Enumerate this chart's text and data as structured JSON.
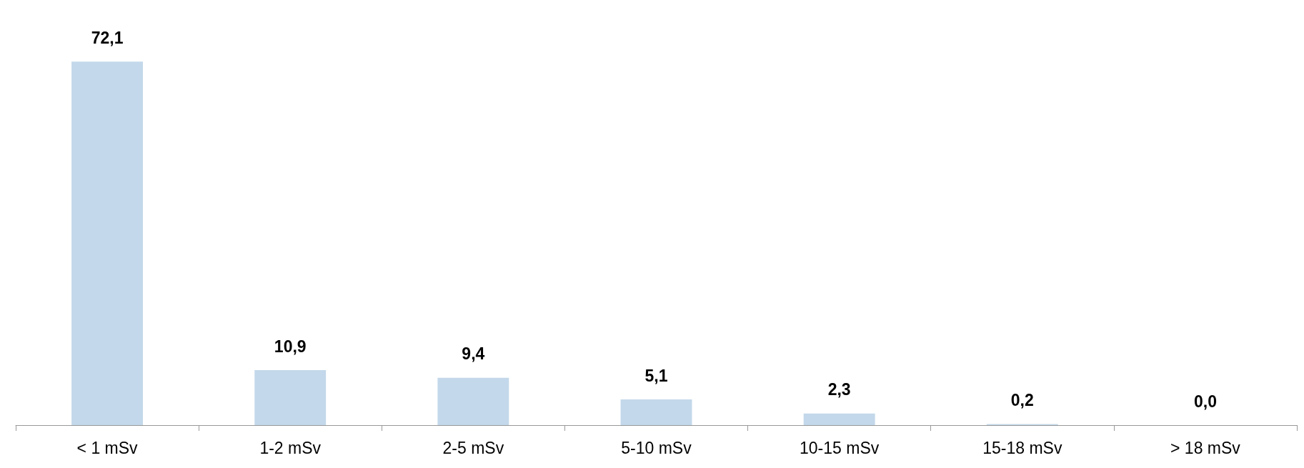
{
  "chart_data": {
    "type": "bar",
    "categories": [
      "< 1 mSv",
      "1-2 mSv",
      "2-5 mSv",
      "5-10 mSv",
      "10-15 mSv",
      "15-18 mSv",
      "> 18 mSv"
    ],
    "values": [
      72.1,
      10.9,
      9.4,
      5.1,
      2.3,
      0.2,
      0.0
    ],
    "value_labels": [
      "72,1",
      "10,9",
      "9,4",
      "5,1",
      "2,3",
      "0,2",
      "0,0"
    ],
    "color": "#c3d8ea"
  }
}
